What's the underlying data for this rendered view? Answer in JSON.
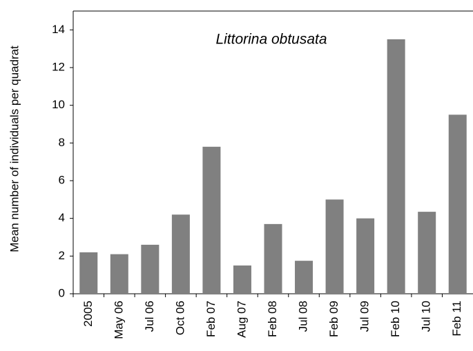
{
  "chart_data": {
    "type": "bar",
    "title": "Littorina obtusata",
    "y_label": "Mean number of individuals per quadrat",
    "categories": [
      "2005",
      "May 06",
      "Jul 06",
      "Oct 06",
      "Feb 07",
      "Aug 07",
      "Feb 08",
      "Jul 08",
      "Feb 09",
      "Jul 09",
      "Feb 10",
      "Jul 10",
      "Feb 11"
    ],
    "values": [
      2.2,
      2.1,
      2.6,
      4.2,
      7.8,
      1.5,
      3.7,
      1.75,
      5.0,
      4.0,
      13.5,
      4.35,
      9.5
    ],
    "color": "#808080",
    "ylim": [
      0,
      15
    ],
    "yticks": [
      0,
      2,
      4,
      6,
      8,
      10,
      12,
      14
    ],
    "grid": false
  }
}
